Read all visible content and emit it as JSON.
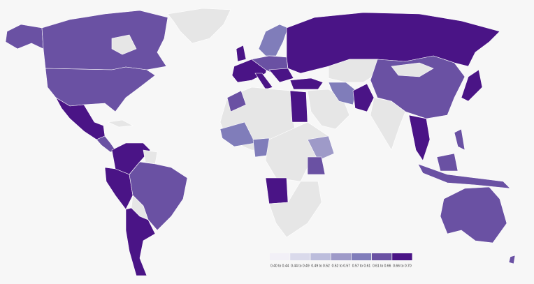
{
  "legend": {
    "items": [
      {
        "label": "0.40 to 0.44",
        "color": "#f2f0f7"
      },
      {
        "label": "0.44 to 0.49",
        "color": "#dadaeb"
      },
      {
        "label": "0.49 to 0.52",
        "color": "#bcbddc"
      },
      {
        "label": "0.52 to 0.57",
        "color": "#9e9ac8"
      },
      {
        "label": "0.57 to 0.61",
        "color": "#807dba"
      },
      {
        "label": "0.61 to 0.66",
        "color": "#6a51a3"
      },
      {
        "label": "0.66 to 0.70",
        "color": "#4a1486"
      }
    ]
  }
}
